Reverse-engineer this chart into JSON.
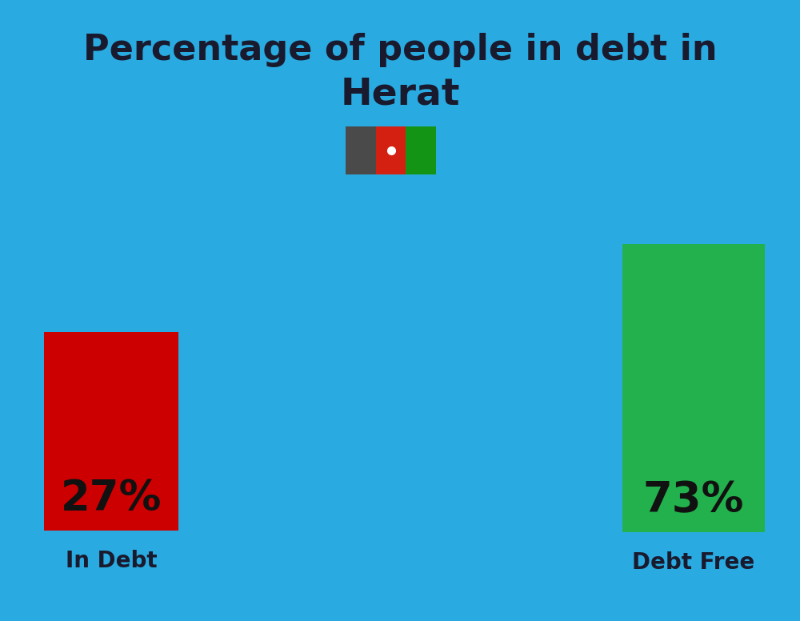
{
  "title_line1": "Percentage of people in debt in",
  "title_line2": "Herat",
  "background_color": "#29ABE2",
  "bar1_value": 27,
  "bar1_label": "27%",
  "bar1_color": "#CC0000",
  "bar1_text": "In Debt",
  "bar2_value": 73,
  "bar2_label": "73%",
  "bar2_color": "#22B14C",
  "bar2_text": "Debt Free",
  "title_fontsize": 32,
  "title2_fontsize": 34,
  "bar_label_fontsize": 38,
  "bar_text_fontsize": 20,
  "title_color": "#1a1a2e",
  "label_color": "#111111",
  "bar_text_color": "#1a1a2e",
  "flag_black": "#4a4a4a",
  "flag_red": "#D32011",
  "flag_green": "#149414"
}
